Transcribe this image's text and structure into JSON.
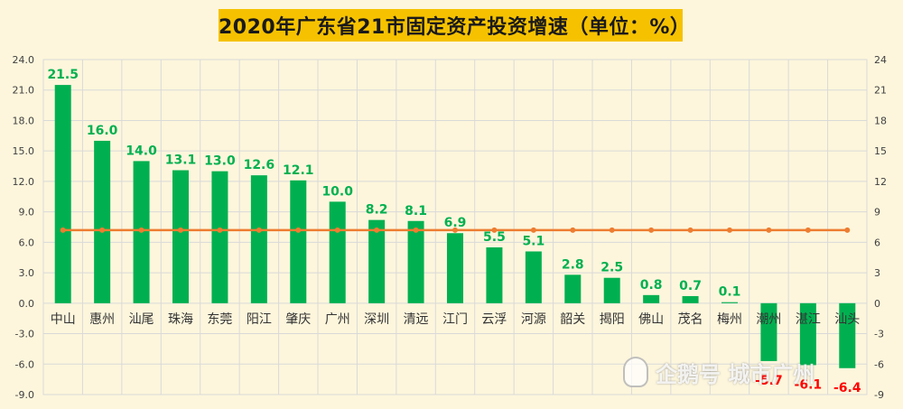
{
  "chart_data": {
    "type": "bar",
    "title": "2020年广东省21市固定资产投资增速（单位：%）",
    "categories": [
      "中山",
      "惠州",
      "汕尾",
      "珠海",
      "东莞",
      "阳江",
      "肇庆",
      "广州",
      "深圳",
      "清远",
      "江门",
      "云浮",
      "河源",
      "韶关",
      "揭阳",
      "佛山",
      "茂名",
      "梅州",
      "潮州",
      "湛江",
      "汕头"
    ],
    "values": [
      21.5,
      16.0,
      14.0,
      13.1,
      13.0,
      12.6,
      12.1,
      10.0,
      8.2,
      8.1,
      6.9,
      5.5,
      5.1,
      2.8,
      2.5,
      0.8,
      0.7,
      0.1,
      -5.7,
      -6.1,
      -6.4
    ],
    "value_labels": [
      "21.5",
      "16.0",
      "14.0",
      "13.1",
      "13.0",
      "12.6",
      "12.1",
      "10.0",
      "8.2",
      "8.1",
      "6.9",
      "5.5",
      "5.1",
      "2.8",
      "2.5",
      "0.8",
      "0.7",
      "0.1",
      "-5.7",
      "-6.1",
      "-6.4"
    ],
    "reference_line": {
      "value": 7.2,
      "color": "#ed7d31"
    },
    "ylim": [
      -9,
      24
    ],
    "yticks_left": [
      "-9.0",
      "-6.0",
      "-3.0",
      "0.0",
      "3.0",
      "6.0",
      "9.0",
      "12.0",
      "15.0",
      "18.0",
      "21.0",
      "24.0"
    ],
    "yticks_right": [
      "-9",
      "-6",
      "-3",
      "0",
      "3",
      "6",
      "9",
      "12",
      "15",
      "18",
      "21",
      "24"
    ],
    "colors": {
      "bar": "#00b050",
      "positive_label": "#00b050",
      "negative_label": "#ff0000",
      "line": "#ed7d31",
      "grid": "#d9d9d9",
      "title_bg": "#f6c200",
      "background": "#fdf6dc"
    },
    "grid": true
  },
  "watermark": {
    "text": "企鹅号 城市广州",
    "icon": "penguin-icon"
  }
}
